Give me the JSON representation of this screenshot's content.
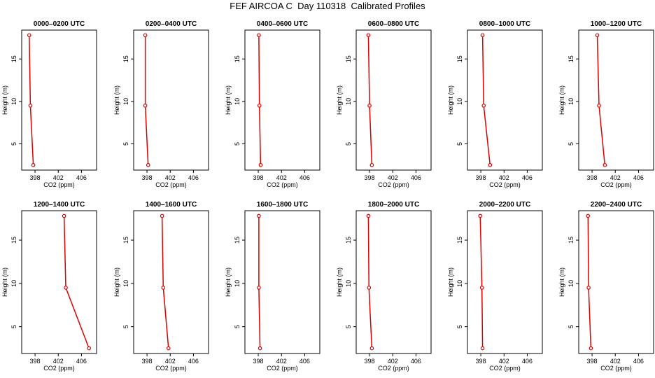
{
  "title": "FEF AIRCOA C  Day 110318  Calibrated Profiles",
  "chart_data": {
    "type": "line",
    "xlabel": "CO2 (ppm)",
    "ylabel": "Height (m)",
    "xlim": [
      395.7,
      408.6
    ],
    "ylim": [
      1.9,
      18.4
    ],
    "xticks": [
      398,
      402,
      406
    ],
    "yticks": [
      5,
      10,
      15
    ],
    "heights": [
      17.8,
      9.5,
      2.5
    ],
    "line_color": "#dd0000",
    "panels": [
      {
        "title": "0000–0200 UTC",
        "values": [
          397.0,
          397.2,
          397.7
        ]
      },
      {
        "title": "0200–0400 UTC",
        "values": [
          397.7,
          397.7,
          398.2
        ]
      },
      {
        "title": "0400–0600 UTC",
        "values": [
          398.1,
          398.2,
          398.4
        ]
      },
      {
        "title": "0600–0800 UTC",
        "values": [
          397.8,
          398.0,
          398.4
        ]
      },
      {
        "title": "0800–1000 UTC",
        "values": [
          398.3,
          398.5,
          399.6
        ]
      },
      {
        "title": "1000–1200 UTC",
        "values": [
          398.9,
          399.2,
          400.2
        ]
      },
      {
        "title": "1200–1400 UTC",
        "values": [
          403.0,
          403.3,
          407.3
        ]
      },
      {
        "title": "1400–1600 UTC",
        "values": [
          400.6,
          400.8,
          401.7
        ]
      },
      {
        "title": "1600–1800 UTC",
        "values": [
          398.1,
          398.1,
          398.3
        ]
      },
      {
        "title": "1800–2000 UTC",
        "values": [
          397.8,
          397.9,
          398.4
        ]
      },
      {
        "title": "2000–2200 UTC",
        "values": [
          397.9,
          398.2,
          398.3
        ]
      },
      {
        "title": "2200–2400 UTC",
        "values": [
          397.3,
          397.4,
          397.8
        ]
      }
    ]
  }
}
